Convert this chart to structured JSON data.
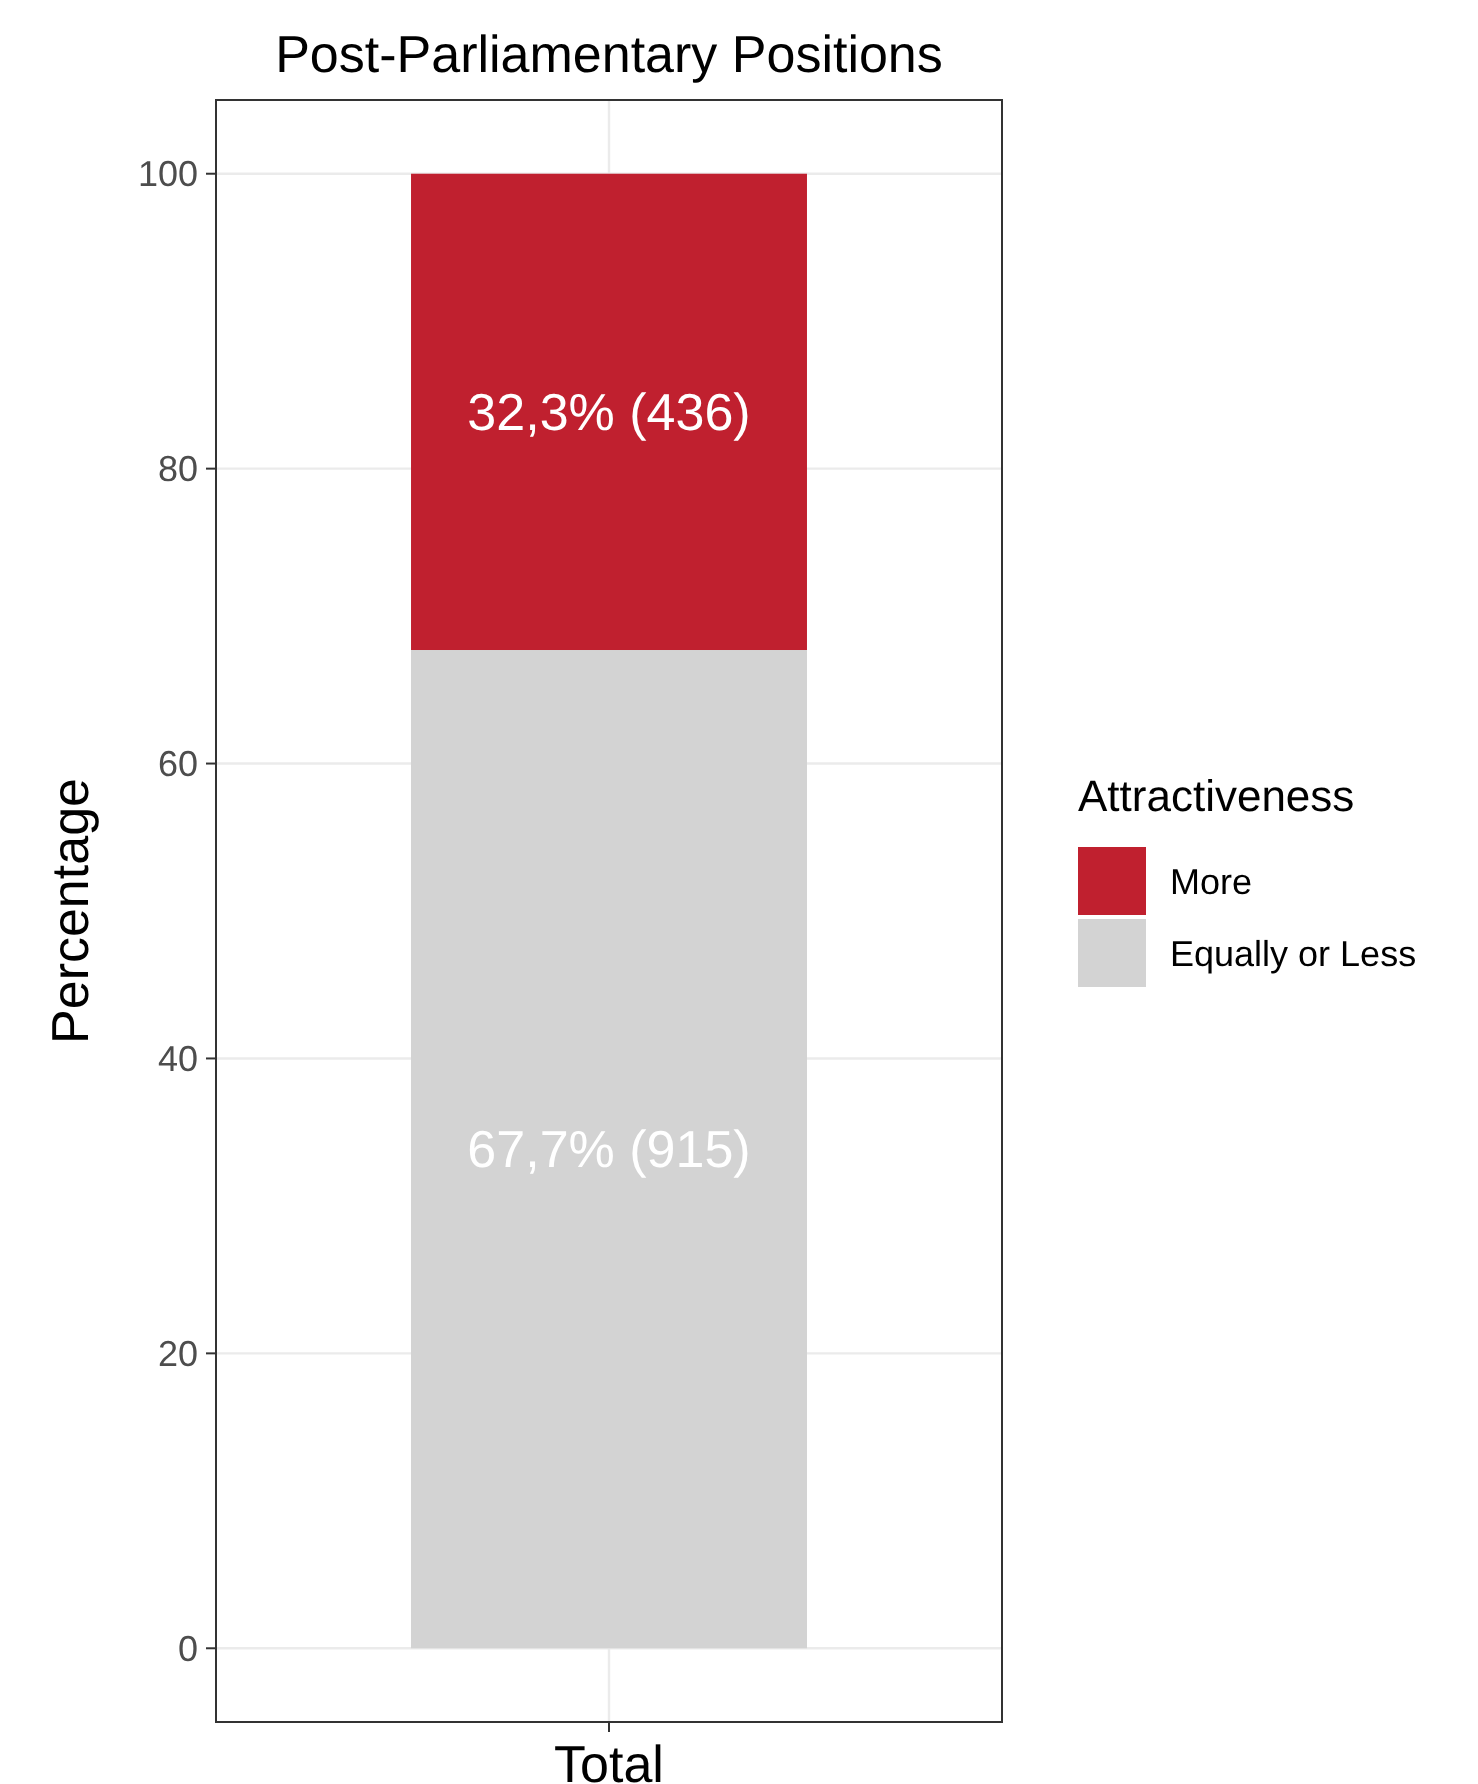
{
  "chart_data": {
    "type": "bar",
    "title": "Post-Parliamentary Positions",
    "ylabel": "Percentage",
    "legend_title": "Attractiveness",
    "categories": [
      "Total"
    ],
    "stacked": true,
    "series": [
      {
        "name": "Equally or Less",
        "color": "#d3d3d3",
        "values": [
          67.7
        ],
        "value_labels": [
          "67,7% (915)"
        ]
      },
      {
        "name": "More",
        "color": "#c0202f",
        "values": [
          32.3
        ],
        "value_labels": [
          "32,3% (436)"
        ]
      }
    ],
    "ylim": [
      -5,
      105
    ],
    "yticks": [
      0,
      20,
      40,
      60,
      80,
      100
    ],
    "grid": true,
    "legend": "right"
  }
}
